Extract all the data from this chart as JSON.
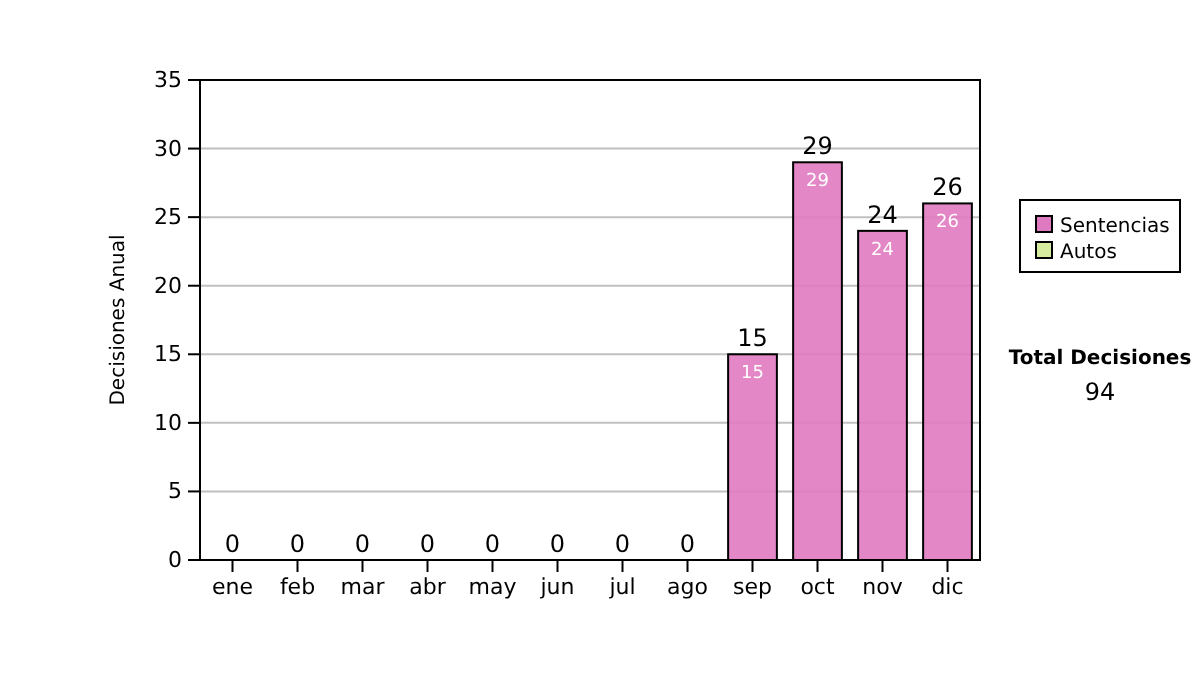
{
  "chart_data": {
    "type": "bar",
    "stacked": true,
    "ylabel": "Decisiones Anual",
    "categories": [
      "ene",
      "feb",
      "mar",
      "abr",
      "may",
      "jun",
      "jul",
      "ago",
      "sep",
      "oct",
      "nov",
      "dic"
    ],
    "series": [
      {
        "name": "Sentencias",
        "color": "#e07ac0",
        "values": [
          0,
          0,
          0,
          0,
          0,
          0,
          0,
          0,
          15,
          29,
          24,
          26
        ],
        "value_labels": [
          null,
          null,
          null,
          null,
          null,
          null,
          null,
          null,
          "15",
          "29",
          "24",
          "26"
        ]
      },
      {
        "name": "Autos",
        "color": "#d8eca0",
        "values": [
          0,
          0,
          0,
          0,
          0,
          0,
          0,
          0,
          0,
          0,
          0,
          0
        ]
      }
    ],
    "totals": [
      "0",
      "0",
      "0",
      "0",
      "0",
      "0",
      "0",
      "0",
      "15",
      "29",
      "24",
      "26"
    ],
    "ylim": [
      0,
      35
    ],
    "yticks": [
      0,
      5,
      10,
      15,
      20,
      25,
      30,
      35
    ],
    "grid": "y",
    "legend": "right",
    "annotations": [
      "Total Decisiones",
      "94"
    ]
  }
}
